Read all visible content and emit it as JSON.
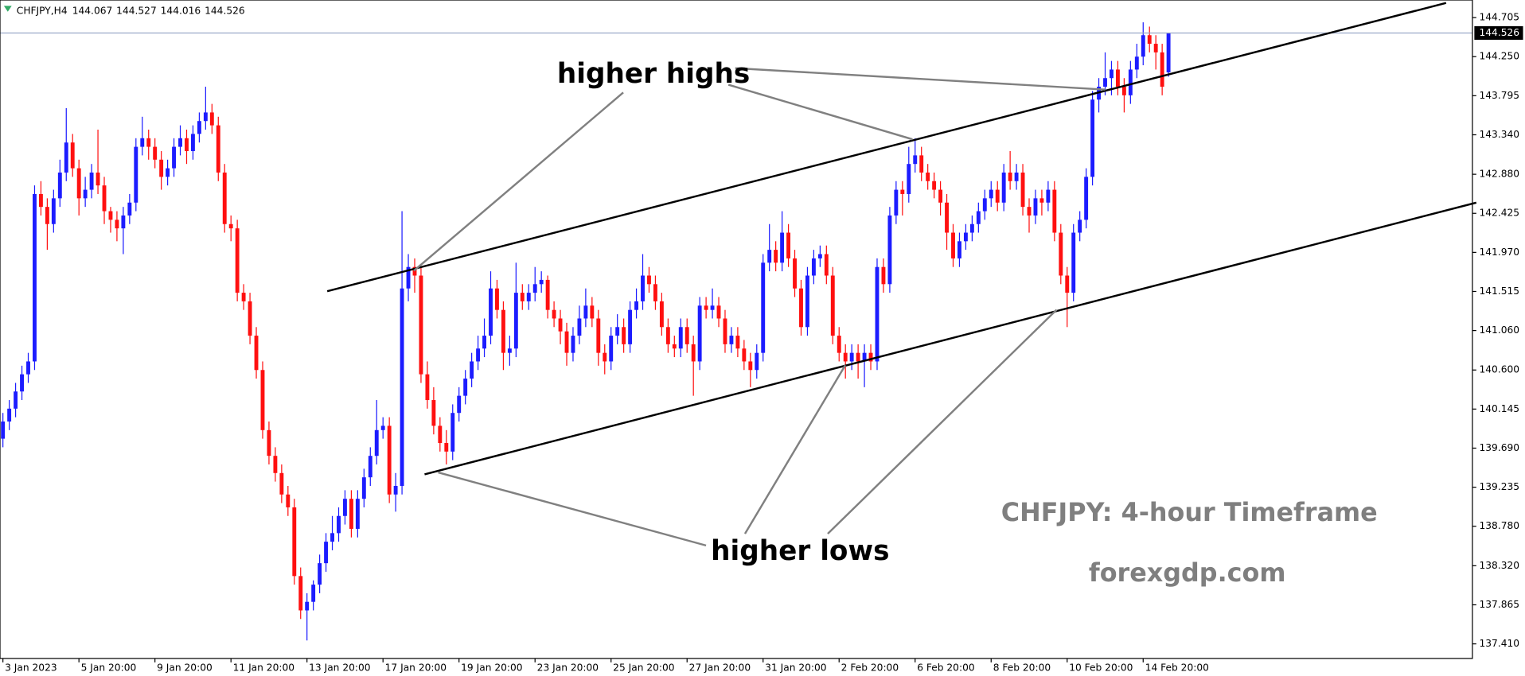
{
  "chart_data": {
    "type": "candlestick",
    "symbol": "CHFJPY,H4",
    "up_color": "#1c1cff",
    "down_color": "#ff1010",
    "ylim": [
      137.24,
      144.91
    ],
    "yticks": [
      144.705,
      {
        "value": 144.25,
        "label": "144.250"
      },
      143.795,
      {
        "value": 143.34,
        "label": "143.340"
      },
      {
        "value": 142.88,
        "label": "142.880"
      },
      142.425,
      {
        "value": 141.97,
        "label": "141.970"
      },
      141.515,
      {
        "value": 141.06,
        "label": "141.060"
      },
      {
        "value": 140.6,
        "label": "140.600"
      },
      140.145,
      {
        "value": 139.69,
        "label": "139.690"
      },
      139.235,
      {
        "value": 138.78,
        "label": "138.780"
      },
      {
        "value": 138.32,
        "label": "138.320"
      },
      137.865,
      {
        "value": 137.41,
        "label": "137.410"
      }
    ],
    "xticks": [
      {
        "value": 0,
        "label": "3 Jan 2023"
      },
      {
        "value": 12,
        "label": "5 Jan 20:00"
      },
      {
        "value": 24,
        "label": "9 Jan 20:00"
      },
      {
        "value": 36,
        "label": "11 Jan 20:00"
      },
      {
        "value": 48,
        "label": "13 Jan 20:00"
      },
      {
        "value": 60,
        "label": "17 Jan 20:00"
      },
      {
        "value": 72,
        "label": "19 Jan 20:00"
      },
      {
        "value": 84,
        "label": "23 Jan 20:00"
      },
      {
        "value": 96,
        "label": "25 Jan 20:00"
      },
      {
        "value": 108,
        "label": "27 Jan 20:00"
      },
      {
        "value": 120,
        "label": "31 Jan 20:00"
      },
      {
        "value": 132,
        "label": "2 Feb 20:00"
      },
      {
        "value": 144,
        "label": "6 Feb 20:00"
      },
      {
        "value": 156,
        "label": "8 Feb 20:00"
      },
      {
        "value": 168,
        "label": "10 Feb 20:00"
      },
      {
        "value": 180,
        "label": "14 Feb 20:00"
      }
    ],
    "annotations": [
      "higher highs",
      "higher lows"
    ],
    "watermark": [
      "CHFJPY: 4-hour Timeframe",
      "forexgdp.com"
    ],
    "ohlc": [
      [
        139.8,
        140.1,
        139.7,
        140.0
      ],
      [
        140.0,
        140.25,
        139.9,
        140.15
      ],
      [
        140.15,
        140.45,
        140.05,
        140.35
      ],
      [
        140.35,
        140.65,
        140.25,
        140.55
      ],
      [
        140.55,
        140.8,
        140.45,
        140.7
      ],
      [
        140.7,
        142.75,
        140.6,
        142.65
      ],
      [
        142.65,
        142.8,
        142.4,
        142.5
      ],
      [
        142.5,
        142.6,
        142.0,
        142.3
      ],
      [
        142.3,
        142.7,
        142.2,
        142.6
      ],
      [
        142.6,
        143.05,
        142.5,
        142.9
      ],
      [
        142.9,
        143.65,
        142.8,
        143.25
      ],
      [
        143.25,
        143.35,
        142.85,
        142.95
      ],
      [
        142.95,
        143.05,
        142.4,
        142.6
      ],
      [
        142.6,
        142.85,
        142.5,
        142.7
      ],
      [
        142.7,
        143.0,
        142.6,
        142.9
      ],
      [
        142.9,
        143.4,
        142.65,
        142.75
      ],
      [
        142.75,
        142.85,
        142.3,
        142.45
      ],
      [
        142.45,
        142.5,
        142.2,
        142.35
      ],
      [
        142.35,
        142.45,
        142.1,
        142.25
      ],
      [
        142.25,
        142.5,
        141.95,
        142.4
      ],
      [
        142.4,
        142.65,
        142.3,
        142.55
      ],
      [
        142.55,
        143.3,
        142.45,
        143.2
      ],
      [
        143.2,
        143.55,
        143.1,
        143.3
      ],
      [
        143.3,
        143.4,
        143.05,
        143.2
      ],
      [
        143.2,
        143.3,
        142.95,
        143.05
      ],
      [
        143.05,
        143.15,
        142.7,
        142.85
      ],
      [
        142.85,
        143.05,
        142.75,
        142.95
      ],
      [
        142.95,
        143.3,
        142.85,
        143.2
      ],
      [
        143.2,
        143.45,
        143.1,
        143.3
      ],
      [
        143.3,
        143.4,
        143.0,
        143.15
      ],
      [
        143.15,
        143.45,
        143.05,
        143.35
      ],
      [
        143.35,
        143.6,
        143.25,
        143.5
      ],
      [
        143.5,
        143.9,
        143.4,
        143.6
      ],
      [
        143.6,
        143.7,
        143.35,
        143.45
      ],
      [
        143.45,
        143.55,
        142.8,
        142.9
      ],
      [
        142.9,
        143.0,
        142.2,
        142.3
      ],
      [
        142.3,
        142.4,
        142.1,
        142.25
      ],
      [
        142.25,
        142.35,
        141.4,
        141.5
      ],
      [
        141.5,
        141.6,
        141.3,
        141.4
      ],
      [
        141.4,
        141.5,
        140.9,
        141.0
      ],
      [
        141.0,
        141.1,
        140.5,
        140.6
      ],
      [
        140.6,
        140.7,
        139.8,
        139.9
      ],
      [
        139.9,
        140.0,
        139.5,
        139.6
      ],
      [
        139.6,
        139.7,
        139.3,
        139.4
      ],
      [
        139.4,
        139.5,
        139.05,
        139.15
      ],
      [
        139.15,
        139.25,
        138.9,
        139.0
      ],
      [
        139.0,
        139.1,
        138.1,
        138.2
      ],
      [
        138.2,
        138.3,
        137.7,
        137.8
      ],
      [
        137.8,
        138.0,
        137.45,
        137.9
      ],
      [
        137.9,
        138.15,
        137.8,
        138.1
      ],
      [
        138.1,
        138.45,
        138.0,
        138.35
      ],
      [
        138.35,
        138.7,
        138.25,
        138.6
      ],
      [
        138.6,
        138.9,
        138.5,
        138.7
      ],
      [
        138.7,
        139.0,
        138.6,
        138.9
      ],
      [
        138.9,
        139.2,
        138.8,
        139.1
      ],
      [
        139.1,
        139.2,
        138.65,
        138.75
      ],
      [
        138.75,
        139.2,
        138.65,
        139.1
      ],
      [
        139.1,
        139.45,
        139.0,
        139.35
      ],
      [
        139.35,
        139.7,
        139.25,
        139.6
      ],
      [
        139.6,
        140.25,
        139.5,
        139.9
      ],
      [
        139.9,
        140.05,
        139.8,
        139.95
      ],
      [
        139.95,
        140.05,
        139.05,
        139.15
      ],
      [
        139.15,
        139.4,
        138.95,
        139.25
      ],
      [
        139.25,
        142.45,
        139.15,
        141.55
      ],
      [
        141.55,
        141.95,
        141.4,
        141.8
      ],
      [
        141.8,
        141.9,
        141.5,
        141.7
      ],
      [
        141.7,
        141.8,
        140.45,
        140.55
      ],
      [
        140.55,
        140.7,
        140.15,
        140.25
      ],
      [
        140.25,
        140.4,
        139.85,
        139.95
      ],
      [
        139.95,
        140.05,
        139.65,
        139.75
      ],
      [
        139.75,
        139.9,
        139.5,
        139.65
      ],
      [
        139.65,
        140.2,
        139.55,
        140.1
      ],
      [
        140.1,
        140.4,
        140.0,
        140.3
      ],
      [
        140.3,
        140.6,
        140.2,
        140.5
      ],
      [
        140.5,
        140.8,
        140.4,
        140.7
      ],
      [
        140.7,
        141.0,
        140.6,
        140.85
      ],
      [
        140.85,
        141.2,
        140.75,
        141.0
      ],
      [
        141.0,
        141.75,
        140.9,
        141.55
      ],
      [
        141.55,
        141.65,
        141.2,
        141.3
      ],
      [
        141.3,
        141.4,
        140.6,
        140.8
      ],
      [
        140.8,
        141.0,
        140.65,
        140.85
      ],
      [
        140.85,
        141.85,
        140.75,
        141.5
      ],
      [
        141.5,
        141.6,
        141.3,
        141.4
      ],
      [
        141.4,
        141.6,
        141.3,
        141.5
      ],
      [
        141.5,
        141.8,
        141.4,
        141.6
      ],
      [
        141.6,
        141.75,
        141.5,
        141.65
      ],
      [
        141.65,
        141.7,
        141.2,
        141.3
      ],
      [
        141.3,
        141.4,
        141.1,
        141.2
      ],
      [
        141.2,
        141.3,
        140.9,
        141.05
      ],
      [
        141.05,
        141.15,
        140.65,
        140.8
      ],
      [
        140.8,
        141.1,
        140.7,
        141.0
      ],
      [
        141.0,
        141.35,
        140.9,
        141.2
      ],
      [
        141.2,
        141.55,
        141.1,
        141.35
      ],
      [
        141.35,
        141.45,
        141.1,
        141.2
      ],
      [
        141.2,
        141.3,
        140.65,
        140.8
      ],
      [
        140.8,
        140.9,
        140.55,
        140.7
      ],
      [
        140.7,
        141.1,
        140.6,
        141.0
      ],
      [
        141.0,
        141.25,
        140.9,
        141.1
      ],
      [
        141.1,
        141.2,
        140.8,
        140.9
      ],
      [
        140.9,
        141.4,
        140.8,
        141.3
      ],
      [
        141.3,
        141.55,
        141.2,
        141.4
      ],
      [
        141.4,
        141.95,
        141.3,
        141.7
      ],
      [
        141.7,
        141.8,
        141.5,
        141.6
      ],
      [
        141.6,
        141.7,
        141.3,
        141.4
      ],
      [
        141.4,
        141.5,
        141.0,
        141.1
      ],
      [
        141.1,
        141.2,
        140.8,
        140.9
      ],
      [
        140.9,
        141.0,
        140.75,
        140.85
      ],
      [
        140.85,
        141.2,
        140.75,
        141.1
      ],
      [
        141.1,
        141.2,
        140.8,
        140.9
      ],
      [
        140.9,
        141.0,
        140.3,
        140.7
      ],
      [
        140.7,
        141.45,
        140.6,
        141.35
      ],
      [
        141.35,
        141.45,
        141.2,
        141.3
      ],
      [
        141.3,
        141.55,
        141.2,
        141.35
      ],
      [
        141.35,
        141.45,
        141.1,
        141.2
      ],
      [
        141.2,
        141.3,
        140.8,
        140.9
      ],
      [
        140.9,
        141.1,
        140.8,
        141.0
      ],
      [
        141.0,
        141.1,
        140.75,
        140.85
      ],
      [
        140.85,
        140.95,
        140.6,
        140.7
      ],
      [
        140.7,
        140.8,
        140.4,
        140.6
      ],
      [
        140.6,
        140.9,
        140.5,
        140.8
      ],
      [
        140.8,
        141.95,
        140.7,
        141.85
      ],
      [
        141.85,
        142.3,
        141.75,
        142.0
      ],
      [
        142.0,
        142.1,
        141.75,
        141.85
      ],
      [
        141.85,
        142.45,
        141.75,
        142.2
      ],
      [
        142.2,
        142.3,
        141.8,
        141.9
      ],
      [
        141.9,
        142.0,
        141.45,
        141.55
      ],
      [
        141.55,
        141.65,
        141.0,
        141.1
      ],
      [
        141.1,
        141.8,
        141.0,
        141.7
      ],
      [
        141.7,
        142.0,
        141.6,
        141.9
      ],
      [
        141.9,
        142.05,
        141.8,
        141.95
      ],
      [
        141.95,
        142.05,
        141.6,
        141.7
      ],
      [
        141.7,
        141.8,
        140.9,
        141.0
      ],
      [
        141.0,
        141.1,
        140.7,
        140.8
      ],
      [
        140.8,
        140.9,
        140.5,
        140.7
      ],
      [
        140.7,
        140.9,
        140.6,
        140.8
      ],
      [
        140.8,
        140.9,
        140.5,
        140.7
      ],
      [
        140.7,
        140.9,
        140.4,
        140.8
      ],
      [
        140.8,
        140.9,
        140.6,
        140.7
      ],
      [
        140.7,
        141.9,
        140.6,
        141.8
      ],
      [
        141.8,
        141.9,
        141.5,
        141.6
      ],
      [
        141.6,
        142.5,
        141.5,
        142.4
      ],
      [
        142.4,
        142.8,
        142.3,
        142.7
      ],
      [
        142.7,
        142.8,
        142.4,
        142.65
      ],
      [
        142.65,
        143.2,
        142.55,
        143.0
      ],
      [
        143.0,
        143.3,
        142.9,
        143.1
      ],
      [
        143.1,
        143.2,
        142.8,
        142.9
      ],
      [
        142.9,
        143.0,
        142.7,
        142.8
      ],
      [
        142.8,
        142.9,
        142.6,
        142.7
      ],
      [
        142.7,
        142.8,
        142.4,
        142.55
      ],
      [
        142.55,
        142.65,
        142.0,
        142.2
      ],
      [
        142.2,
        142.3,
        141.8,
        141.9
      ],
      [
        141.9,
        142.2,
        141.8,
        142.1
      ],
      [
        142.1,
        142.3,
        142.0,
        142.2
      ],
      [
        142.2,
        142.4,
        142.1,
        142.3
      ],
      [
        142.3,
        142.55,
        142.2,
        142.45
      ],
      [
        142.45,
        142.7,
        142.35,
        142.6
      ],
      [
        142.6,
        142.8,
        142.5,
        142.7
      ],
      [
        142.7,
        142.8,
        142.45,
        142.55
      ],
      [
        142.55,
        143.0,
        142.45,
        142.9
      ],
      [
        142.9,
        143.15,
        142.7,
        142.8
      ],
      [
        142.8,
        143.0,
        142.7,
        142.9
      ],
      [
        142.9,
        143.0,
        142.4,
        142.5
      ],
      [
        142.5,
        142.6,
        142.2,
        142.4
      ],
      [
        142.4,
        142.7,
        142.3,
        142.6
      ],
      [
        142.6,
        142.7,
        142.4,
        142.55
      ],
      [
        142.55,
        142.8,
        142.45,
        142.7
      ],
      [
        142.7,
        142.8,
        142.1,
        142.2
      ],
      [
        142.2,
        142.3,
        141.6,
        141.7
      ],
      [
        141.7,
        141.8,
        141.1,
        141.5
      ],
      [
        141.5,
        142.3,
        141.4,
        142.2
      ],
      [
        142.2,
        142.45,
        142.1,
        142.35
      ],
      [
        142.35,
        142.95,
        142.25,
        142.85
      ],
      [
        142.85,
        143.85,
        142.75,
        143.75
      ],
      [
        143.75,
        144.0,
        143.6,
        143.9
      ],
      [
        143.9,
        144.3,
        143.8,
        144.0
      ],
      [
        144.0,
        144.2,
        143.8,
        144.1
      ],
      [
        144.1,
        144.2,
        143.8,
        143.9
      ],
      [
        143.9,
        144.0,
        143.6,
        143.8
      ],
      [
        143.8,
        144.2,
        143.7,
        144.1
      ],
      [
        144.1,
        144.4,
        144.0,
        144.25
      ],
      [
        144.25,
        144.65,
        144.15,
        144.5
      ],
      [
        144.5,
        144.6,
        144.3,
        144.4
      ],
      [
        144.4,
        144.5,
        144.1,
        144.3
      ],
      [
        144.3,
        144.4,
        143.8,
        143.9
      ],
      [
        144.067,
        144.527,
        144.016,
        144.526
      ]
    ]
  }
}
